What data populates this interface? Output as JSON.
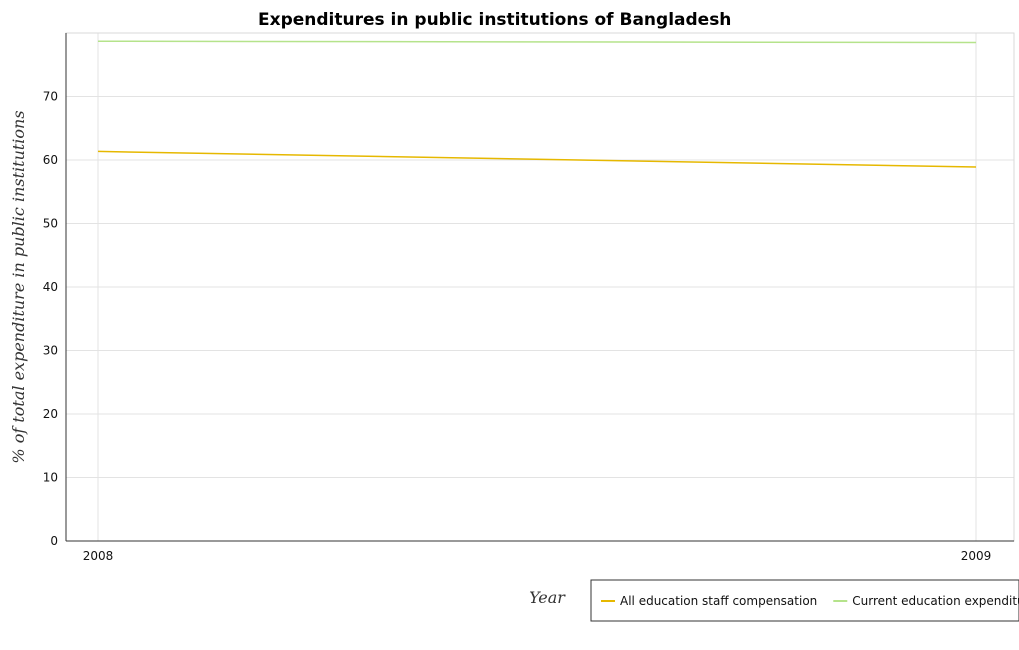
{
  "chart_data": {
    "type": "line",
    "title": "Expenditures in public institutions of Bangladesh",
    "xlabel": "Year",
    "ylabel": "% of total expenditure in public institutions",
    "categories": [
      "2008",
      "2009"
    ],
    "ylim": [
      0,
      80
    ],
    "yticks": [
      0,
      10,
      20,
      30,
      40,
      50,
      60,
      70
    ],
    "grid": true,
    "legend_position": "bottom-right",
    "series": [
      {
        "name": "All education staff compensation",
        "values": [
          61.35,
          58.9
        ],
        "color": "#e6b800"
      },
      {
        "name": "Current education expenditure",
        "values": [
          78.7,
          78.5
        ],
        "color": "#b5e38b"
      }
    ]
  }
}
